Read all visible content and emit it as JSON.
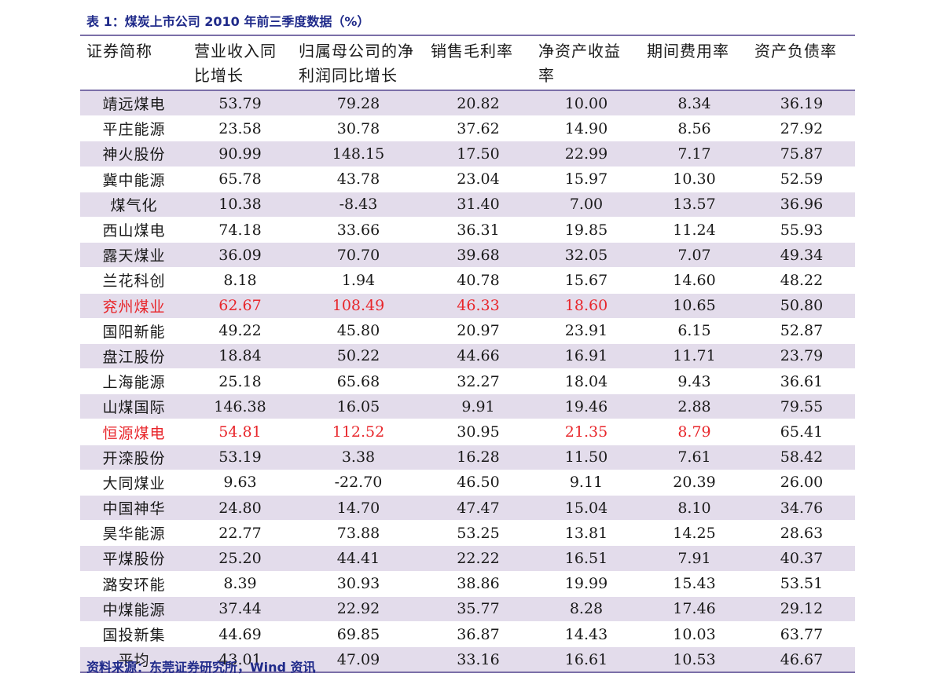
{
  "caption": "表 1：煤炭上市公司 2010 年前三季度数据（%）",
  "source": "资料来源：东莞证券研究所，Wind 资讯",
  "colors": {
    "accent_text": "#1f2a8a",
    "highlight": "#e8262b",
    "row_band": "#e3dceb",
    "rule": "#7b6fa8"
  },
  "headers": [
    "证券简称",
    "营业收入同比增长",
    "归属母公司的净利润同比增长",
    "销售毛利率",
    "净资产收益率",
    "期间费用率",
    "资产负债率"
  ],
  "rows": [
    {
      "cells": [
        "靖远煤电",
        "53.79",
        "79.28",
        "20.82",
        "10.00",
        "8.34",
        "36.19"
      ],
      "red": []
    },
    {
      "cells": [
        "平庄能源",
        "23.58",
        "30.78",
        "37.62",
        "14.90",
        "8.56",
        "27.92"
      ],
      "red": []
    },
    {
      "cells": [
        "神火股份",
        "90.99",
        "148.15",
        "17.50",
        "22.99",
        "7.17",
        "75.87"
      ],
      "red": []
    },
    {
      "cells": [
        "冀中能源",
        "65.78",
        "43.78",
        "23.04",
        "15.97",
        "10.30",
        "52.59"
      ],
      "red": []
    },
    {
      "cells": [
        "煤气化",
        "10.38",
        "-8.43",
        "31.40",
        "7.00",
        "13.57",
        "36.96"
      ],
      "red": []
    },
    {
      "cells": [
        "西山煤电",
        "74.18",
        "33.66",
        "36.31",
        "19.85",
        "11.24",
        "55.93"
      ],
      "red": []
    },
    {
      "cells": [
        "露天煤业",
        "36.09",
        "70.70",
        "39.68",
        "32.05",
        "7.07",
        "49.34"
      ],
      "red": []
    },
    {
      "cells": [
        "兰花科创",
        "8.18",
        "1.94",
        "40.78",
        "15.67",
        "14.60",
        "48.22"
      ],
      "red": []
    },
    {
      "cells": [
        "兖州煤业",
        "62.67",
        "108.49",
        "46.33",
        "18.60",
        "10.65",
        "50.80"
      ],
      "red": [
        0,
        1,
        2,
        3,
        4
      ]
    },
    {
      "cells": [
        "国阳新能",
        "49.22",
        "45.80",
        "20.97",
        "23.91",
        "6.15",
        "52.87"
      ],
      "red": []
    },
    {
      "cells": [
        "盘江股份",
        "18.84",
        "50.22",
        "44.66",
        "16.91",
        "11.71",
        "23.79"
      ],
      "red": []
    },
    {
      "cells": [
        "上海能源",
        "25.18",
        "65.68",
        "32.27",
        "18.04",
        "9.43",
        "36.61"
      ],
      "red": []
    },
    {
      "cells": [
        "山煤国际",
        "146.38",
        "16.05",
        "9.91",
        "19.46",
        "2.88",
        "79.55"
      ],
      "red": []
    },
    {
      "cells": [
        "恒源煤电",
        "54.81",
        "112.52",
        "30.95",
        "21.35",
        "8.79",
        "65.41"
      ],
      "red": [
        0,
        1,
        2,
        4,
        5
      ]
    },
    {
      "cells": [
        "开滦股份",
        "53.19",
        "3.38",
        "16.28",
        "11.50",
        "7.61",
        "58.42"
      ],
      "red": []
    },
    {
      "cells": [
        "大同煤业",
        "9.63",
        "-22.70",
        "46.50",
        "9.11",
        "20.39",
        "26.00"
      ],
      "red": []
    },
    {
      "cells": [
        "中国神华",
        "24.80",
        "14.70",
        "47.47",
        "15.04",
        "8.10",
        "34.76"
      ],
      "red": []
    },
    {
      "cells": [
        "昊华能源",
        "22.77",
        "73.88",
        "53.25",
        "13.81",
        "14.25",
        "28.63"
      ],
      "red": []
    },
    {
      "cells": [
        "平煤股份",
        "25.20",
        "44.41",
        "22.22",
        "16.51",
        "7.91",
        "40.37"
      ],
      "red": []
    },
    {
      "cells": [
        "潞安环能",
        "8.39",
        "30.93",
        "38.86",
        "19.99",
        "15.43",
        "53.51"
      ],
      "red": []
    },
    {
      "cells": [
        "中煤能源",
        "37.44",
        "22.92",
        "35.77",
        "8.28",
        "17.46",
        "29.12"
      ],
      "red": []
    },
    {
      "cells": [
        "国投新集",
        "44.69",
        "69.85",
        "36.87",
        "14.43",
        "10.03",
        "63.77"
      ],
      "red": []
    },
    {
      "cells": [
        "平均",
        "43.01",
        "47.09",
        "33.16",
        "16.61",
        "10.53",
        "46.67"
      ],
      "red": []
    }
  ]
}
